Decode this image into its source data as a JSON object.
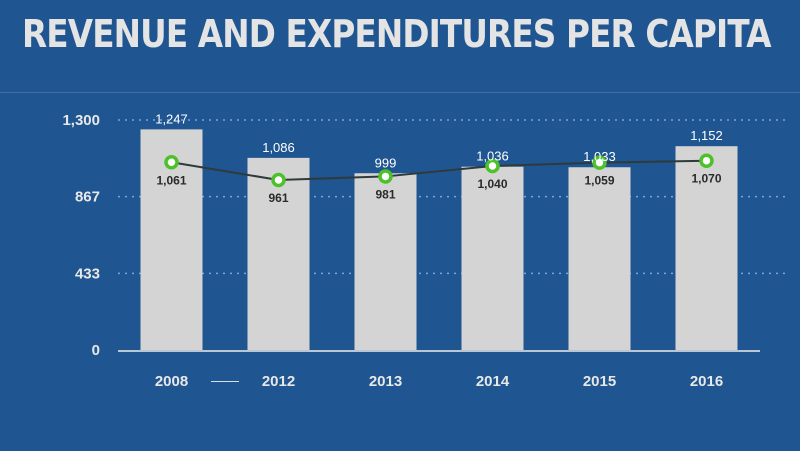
{
  "slide": {
    "title": "REVENUE AND EXPENDITURES PER CAPITA",
    "axis_break_marker": "——"
  },
  "colors": {
    "background": "#1f5590",
    "bar": "#d4d4d4",
    "line": "#2f3a3a",
    "marker": "#4cc12a",
    "text": "#e8e8e8"
  },
  "chart_data": {
    "type": "bar",
    "categories": [
      "2008",
      "2012",
      "2013",
      "2014",
      "2015",
      "2016"
    ],
    "series": [
      {
        "kind": "bar",
        "values": [
          1247,
          1086,
          999,
          1036,
          1033,
          1152
        ]
      },
      {
        "kind": "line",
        "values": [
          1061,
          961,
          981,
          1040,
          1059,
          1070
        ]
      }
    ],
    "bar_labels": [
      "1,247",
      "1,086",
      "999",
      "1,036",
      "1,033",
      "1,152"
    ],
    "line_labels": [
      "1,061",
      "961",
      "981",
      "1,040",
      "1,059",
      "1,070"
    ],
    "yticks": [
      0,
      433,
      867,
      1300
    ],
    "ytick_labels": [
      "0",
      "433",
      "867",
      "1,300"
    ],
    "ylim": [
      0,
      1300
    ],
    "grid": true,
    "legend": "none"
  }
}
